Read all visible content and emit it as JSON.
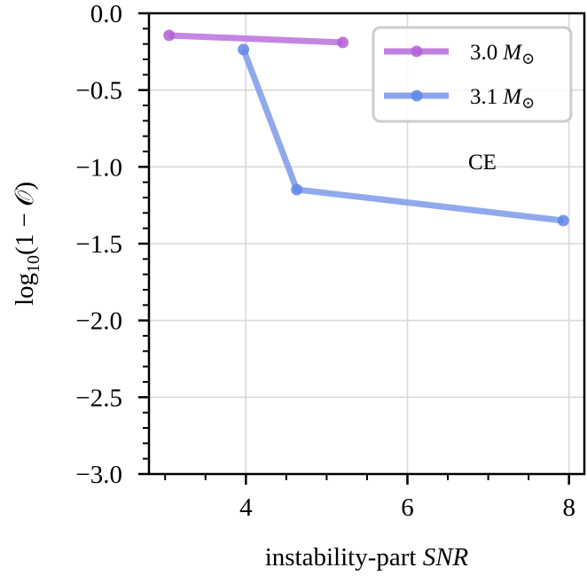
{
  "chart_data": {
    "type": "line",
    "title": "",
    "xlabel": "instability-part SNR",
    "xlabel_parts": {
      "plain": "instability-part ",
      "italic": "SNR"
    },
    "ylabel": "log10(1 − 𝒪)",
    "ylabel_parts": {
      "base": "log",
      "sub": "10",
      "rest": "(1 − 𝒪)"
    },
    "xlim": [
      2.8,
      8.19
    ],
    "ylim": [
      -3.0,
      0.0
    ],
    "xticks": [
      4,
      6,
      8
    ],
    "xtick_labels": [
      "4",
      "6",
      "8"
    ],
    "x_minor_step": 0.5,
    "yticks": [
      0.0,
      -0.5,
      -1.0,
      -1.5,
      -2.0,
      -2.5,
      -3.0
    ],
    "ytick_labels": [
      "0.0",
      "−0.5",
      "−1.0",
      "−1.5",
      "−2.0",
      "−2.5",
      "−3.0"
    ],
    "y_minor_step": 0.1,
    "grid": true,
    "legend_position": "top-right",
    "annotation": {
      "text": "CE",
      "x": 7.1,
      "y": -1.0
    },
    "series": [
      {
        "name": "3.0 M⊙",
        "label_number": "3.0",
        "label_symbol": "M",
        "label_sub": "⊙",
        "color": "#c27ee0",
        "marker_color": "#b25fd6",
        "x": [
          3.05,
          5.2
        ],
        "y": [
          -0.144,
          -0.19
        ]
      },
      {
        "name": "3.1 M⊙",
        "label_number": "3.1",
        "label_symbol": "M",
        "label_sub": "⊙",
        "color": "#8aa4ec",
        "marker_color": "#6286e6",
        "x": [
          3.97,
          4.63,
          7.93
        ],
        "y": [
          -0.236,
          -1.148,
          -1.35
        ]
      }
    ]
  }
}
